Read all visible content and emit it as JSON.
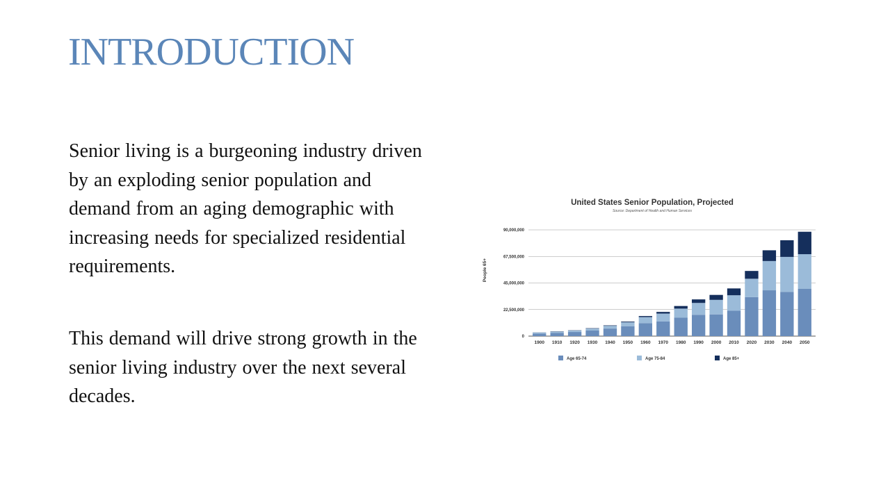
{
  "slide": {
    "title": "INTRODUCTION",
    "paragraphs": [
      "Senior living is a burgeoning industry driven by an exploding senior population and demand from an aging demographic with increasing needs for specialized residential requirements.",
      "This demand will drive strong growth in the senior living industry over the next several decades."
    ]
  },
  "chart_data": {
    "type": "bar",
    "stacked": true,
    "title": "United States Senior Population, Projected",
    "subtitle": "Source: Department of Health and Human Services",
    "xlabel": "",
    "ylabel": "People 65+",
    "ylim": [
      0,
      90000000
    ],
    "yticks": [
      0,
      22500000,
      45000000,
      67500000,
      90000000
    ],
    "ytick_labels": [
      "0",
      "22,500,000",
      "45,000,000",
      "67,500,000",
      "90,000,000"
    ],
    "grid": true,
    "legend_position": "bottom",
    "categories": [
      "1900",
      "1910",
      "1920",
      "1930",
      "1940",
      "1950",
      "1960",
      "1970",
      "1980",
      "1990",
      "2000",
      "2010",
      "2020",
      "2030",
      "2040",
      "2050"
    ],
    "series": [
      {
        "name": "Age 65-74",
        "color": "#6a8dbb",
        "values": [
          2200000,
          2800000,
          3500000,
          4700000,
          6400000,
          8400000,
          11000000,
          12400000,
          15600000,
          18000000,
          18400000,
          21500000,
          33000000,
          38800000,
          37500000,
          40000000
        ]
      },
      {
        "name": "Age 75-84",
        "color": "#9bbbd9",
        "values": [
          800000,
          1000000,
          1200000,
          1700000,
          2300000,
          3300000,
          5100000,
          6700000,
          7700000,
          10100000,
          12300000,
          13100000,
          15600000,
          24800000,
          29600000,
          29400000
        ]
      },
      {
        "name": "Age 85+",
        "color": "#152f5c",
        "values": [
          100000,
          200000,
          200000,
          300000,
          400000,
          600000,
          900000,
          1400000,
          2200000,
          3000000,
          4200000,
          5800000,
          6600000,
          9100000,
          14100000,
          19000000
        ]
      }
    ]
  }
}
